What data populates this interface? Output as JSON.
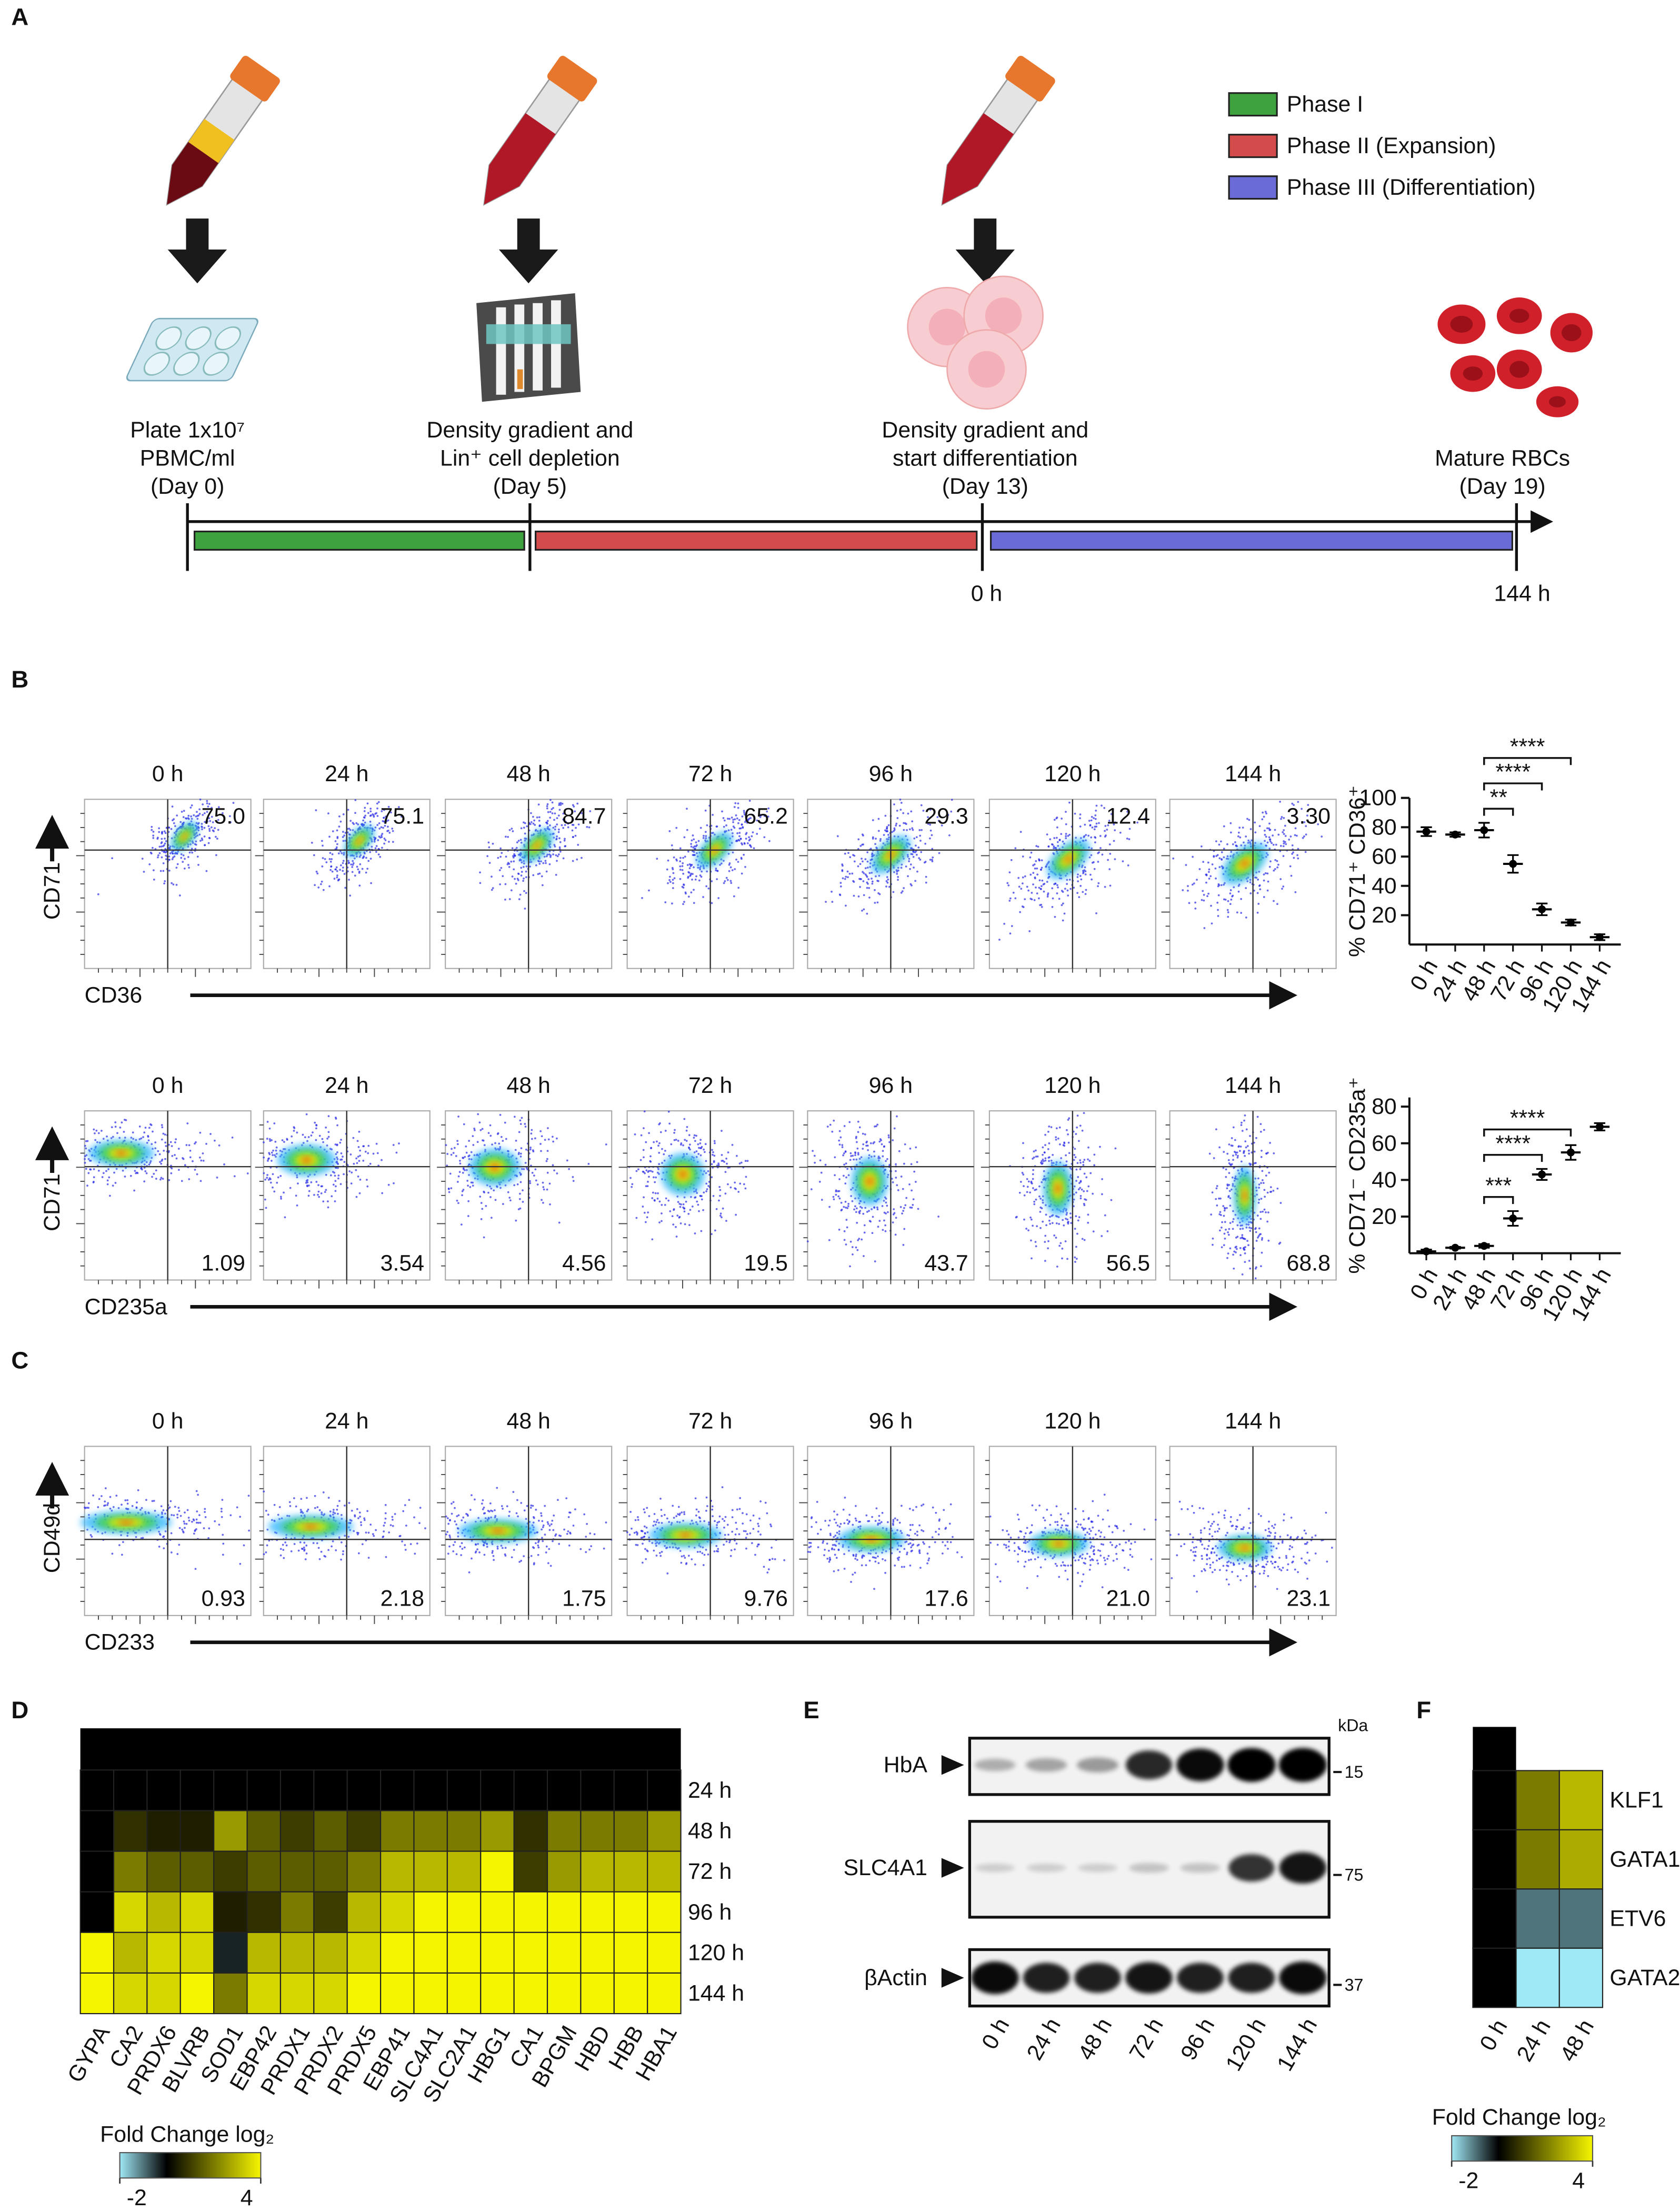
{
  "panel_letters": [
    "A",
    "B",
    "C",
    "D",
    "E",
    "F"
  ],
  "panel_a": {
    "legend": [
      {
        "name": "Phase I",
        "color": "#3ea33e"
      },
      {
        "name": "Phase II (Expansion)",
        "color": "#d44b4b"
      },
      {
        "name": "Phase III (Differentiation)",
        "color": "#6b6bd8"
      }
    ],
    "steps": [
      {
        "lines": [
          "Plate 1x10⁷",
          "PBMC/ml",
          "(Day 0)"
        ]
      },
      {
        "lines": [
          "Density gradient and",
          "Lin⁺ cell depletion",
          "(Day 5)"
        ]
      },
      {
        "lines": [
          "Density gradient and",
          "start differentiation",
          "(Day 13)"
        ]
      },
      {
        "lines": [
          "Mature RBCs",
          "(Day 19)"
        ]
      }
    ],
    "timeline_labels": [
      "0 h",
      "144 h"
    ]
  },
  "panel_b": {
    "timepoints": [
      "0 h",
      "24 h",
      "48 h",
      "72 h",
      "96 h",
      "120 h",
      "144 h"
    ],
    "rows": [
      {
        "y_label": "CD71",
        "x_label": "CD36",
        "gate_values": [
          "75.0",
          "75.1",
          "84.7",
          "65.2",
          "29.3",
          "12.4",
          "3.30"
        ]
      },
      {
        "y_label": "CD71",
        "x_label": "CD235a",
        "gate_values": [
          "1.09",
          "3.54",
          "4.56",
          "19.5",
          "43.7",
          "56.5",
          "68.8"
        ]
      }
    ]
  },
  "panel_c": {
    "timepoints": [
      "0 h",
      "24 h",
      "48 h",
      "72 h",
      "96 h",
      "120 h",
      "144 h"
    ],
    "rows": [
      {
        "y_label": "CD49d",
        "x_label": "CD233",
        "gate_values": [
          "0.93",
          "2.18",
          "1.75",
          "9.76",
          "17.6",
          "21.0",
          "23.1"
        ]
      }
    ]
  },
  "panel_e": {
    "unit": "kDa",
    "lanes": [
      "0 h",
      "24 h",
      "48 h",
      "72 h",
      "96 h",
      "120 h",
      "144 h"
    ],
    "rows": [
      {
        "name": "HbA",
        "marker": "15",
        "intensities": [
          0.15,
          0.2,
          0.25,
          0.8,
          0.95,
          1,
          1
        ]
      },
      {
        "name": "SLC4A1",
        "marker": "75",
        "intensities": [
          0,
          0,
          0,
          0.05,
          0.05,
          0.75,
          0.9
        ]
      },
      {
        "name": "βActin",
        "marker": "37",
        "intensities": [
          0.95,
          0.85,
          0.85,
          0.9,
          0.85,
          0.85,
          0.95
        ]
      }
    ]
  },
  "chart_data": [
    {
      "type": "scatter",
      "y_label": "% CD71⁺ CD36⁺",
      "categories": [
        "0 h",
        "24 h",
        "48 h",
        "72 h",
        "96 h",
        "120 h",
        "144 h"
      ],
      "values": [
        77,
        75,
        78,
        55,
        24,
        15,
        5
      ],
      "errors": [
        3,
        1.5,
        5,
        6,
        4,
        2,
        2
      ],
      "ylim": [
        0,
        100
      ],
      "yticks": [
        20,
        40,
        60,
        80,
        100
      ],
      "color": "#000000",
      "significance": [
        {
          "between": [
            "48 h",
            "72 h"
          ],
          "label": "**"
        },
        {
          "between": [
            "48 h",
            "96 h"
          ],
          "label": "****"
        },
        {
          "between": [
            "48 h",
            "120 h"
          ],
          "label": "****"
        }
      ]
    },
    {
      "type": "scatter",
      "y_label": "% CD71⁻ CD235a⁺",
      "categories": [
        "0 h",
        "24 h",
        "48 h",
        "72 h",
        "96 h",
        "120 h",
        "144 h"
      ],
      "values": [
        1,
        3,
        4,
        19,
        43,
        55,
        69
      ],
      "errors": [
        1,
        0.5,
        1,
        4,
        3,
        4,
        2
      ],
      "ylim": [
        0,
        85
      ],
      "yticks": [
        20,
        40,
        60,
        80
      ],
      "color": "#000000",
      "significance": [
        {
          "between": [
            "48 h",
            "72 h"
          ],
          "label": "***"
        },
        {
          "between": [
            "48 h",
            "96 h"
          ],
          "label": "****"
        },
        {
          "between": [
            "48 h",
            "120 h"
          ],
          "label": "****"
        }
      ]
    },
    {
      "type": "heatmap",
      "x_categories": [
        "GYPA",
        "CA2",
        "PRDX6",
        "BLVRB",
        "SOD1",
        "EBP42",
        "PRDX1",
        "PRDX2",
        "PRDX5",
        "EBP41",
        "SLC4A1",
        "SLC2A1",
        "HBG1",
        "CA1",
        "BPGM",
        "HBD",
        "HBB",
        "HBA1"
      ],
      "y_categories": [
        "24 h",
        "48 h",
        "72 h",
        "96 h",
        "120 h",
        "144 h"
      ],
      "values": [
        [
          0,
          0,
          0,
          0,
          0,
          0,
          0,
          0,
          0,
          0,
          0,
          0,
          0,
          0,
          0,
          0,
          0,
          0
        ],
        [
          0,
          0.8,
          0.5,
          0.5,
          2.5,
          1.5,
          1,
          1.5,
          1,
          2,
          2,
          2,
          2.5,
          0.8,
          2,
          2,
          2,
          2.5
        ],
        [
          0,
          2,
          1.5,
          1.5,
          1,
          1.5,
          1.5,
          1.5,
          2,
          3,
          3,
          3,
          4,
          1,
          2.5,
          3,
          3,
          3
        ],
        [
          0,
          3.5,
          3,
          3.5,
          0.5,
          0.8,
          2,
          1,
          3,
          3.5,
          4,
          4,
          4,
          4,
          4,
          4,
          4,
          4
        ],
        [
          4,
          3,
          3.5,
          3.5,
          -0.3,
          3,
          3,
          3,
          3.5,
          4,
          4,
          4,
          4,
          4,
          4,
          4,
          4,
          4
        ],
        [
          4,
          3.5,
          3.5,
          4,
          2,
          3.5,
          3.5,
          3.5,
          4,
          4,
          4,
          4,
          4,
          4,
          4,
          4,
          4,
          4
        ]
      ],
      "colorbar_label": "Fold Change log₂",
      "clim": [
        -2,
        4
      ],
      "cticks": [
        -2,
        4
      ],
      "colormap": [
        {
          "value": -2,
          "color": "#9fe8f5"
        },
        {
          "value": 0,
          "color": "#000000"
        },
        {
          "value": 4,
          "color": "#f5f500"
        }
      ]
    },
    {
      "type": "heatmap",
      "x_categories": [
        "0 h",
        "24 h",
        "48 h"
      ],
      "y_categories": [
        "KLF1",
        "GATA1",
        "ETV6",
        "GATA2"
      ],
      "values": [
        [
          0,
          2,
          3
        ],
        [
          0,
          2,
          2.8
        ],
        [
          0,
          -1,
          -1
        ],
        [
          0,
          -2,
          -2
        ]
      ],
      "colorbar_label": "Fold Change log₂",
      "clim": [
        -2,
        4
      ],
      "cticks": [
        -2,
        4
      ],
      "colormap": [
        {
          "value": -2,
          "color": "#9fe8f5"
        },
        {
          "value": 0,
          "color": "#000000"
        },
        {
          "value": 4,
          "color": "#f5f500"
        }
      ]
    }
  ]
}
